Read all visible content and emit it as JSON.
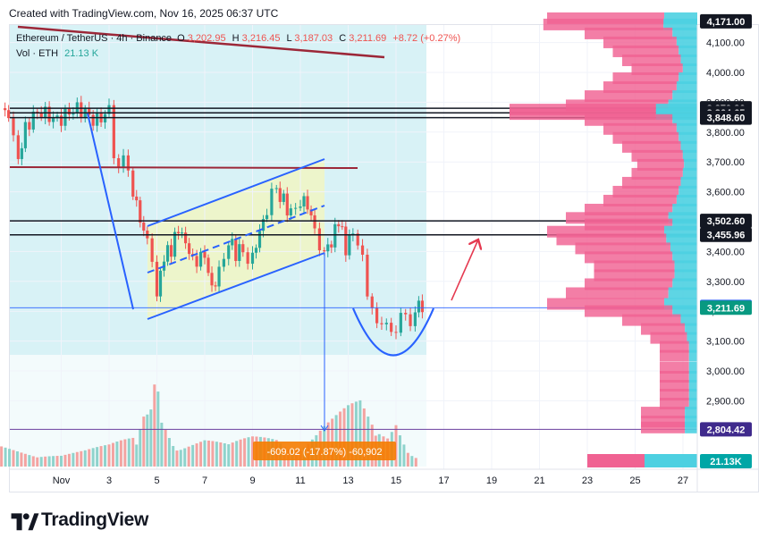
{
  "header": {
    "created_text": "Created with TradingView.com, Nov 16, 2025 06:37 UTC"
  },
  "legend": {
    "symbol": "Ethereum / TetherUS · 4h · Binance",
    "o_label": "O",
    "o_value": "3,202.95",
    "h_label": "H",
    "h_value": "3,216.45",
    "l_label": "L",
    "l_value": "3,187.03",
    "c_label": "C",
    "c_value": "3,211.69",
    "change": "+8.72 (+0.27%)",
    "vol_label": "Vol · ETH",
    "vol_value": "21.13 K"
  },
  "colors": {
    "up": "#26a69a",
    "down": "#ef5350",
    "trendline": "#2962ff",
    "resistance": "#9c2738",
    "target_arrow": "#e53950",
    "range_fill": "#d8f2f6",
    "channel_fill": "#f0f5c6",
    "vp_pink": "#f06292",
    "vp_cyan": "#4dd0e1",
    "measure_label": "#f57c00"
  },
  "footer": {
    "brand": "TradingView"
  },
  "measure": {
    "label": "-609.02 (-17.87%) -60,902"
  },
  "chart_data": {
    "type": "candlestick",
    "timeframe": "4h",
    "ylim": [
      2700,
      4200
    ],
    "y_ticks": [
      2900,
      3000,
      3100,
      3200,
      3300,
      3400,
      3500,
      3600,
      3700,
      3800,
      3900,
      4000,
      4100
    ],
    "y_tick_labels": [
      "2,900.00",
      "3,000.00",
      "3,100.00",
      "3,200.00",
      "3,300.00",
      "3,400.00",
      "3,500.00",
      "3,600.00",
      "3,700.00",
      "3,800.00",
      "3,900.00",
      "4,000.00",
      "4,100.00"
    ],
    "x_ticks": [
      {
        "label": "Nov",
        "day": 1
      },
      {
        "label": "3",
        "day": 3
      },
      {
        "label": "5",
        "day": 5
      },
      {
        "label": "7",
        "day": 7
      },
      {
        "label": "9",
        "day": 9
      },
      {
        "label": "11",
        "day": 11
      },
      {
        "label": "13",
        "day": 13
      },
      {
        "label": "15",
        "day": 15
      },
      {
        "label": "17",
        "day": 17
      },
      {
        "label": "19",
        "day": 19
      },
      {
        "label": "21",
        "day": 21
      },
      {
        "label": "23",
        "day": 23
      },
      {
        "label": "25",
        "day": 25
      },
      {
        "label": "27",
        "day": 27
      }
    ],
    "price_labels": [
      {
        "value": "4,171.00",
        "price": 4171,
        "style": "dark"
      },
      {
        "value": "3,879.86",
        "price": 3879.86,
        "style": "dark"
      },
      {
        "value": "3,864.65",
        "price": 3864.65,
        "style": "dark"
      },
      {
        "value": "3,848.60",
        "price": 3848.6,
        "style": "dark"
      },
      {
        "value": "3,502.60",
        "price": 3502.6,
        "style": "dark"
      },
      {
        "value": "3,455.96",
        "price": 3455.96,
        "style": "dark"
      },
      {
        "value": "3,214.51",
        "price": 3214.51,
        "style": "blue"
      },
      {
        "value": "3,211.69",
        "price": 3211.69,
        "style": "green"
      },
      {
        "value": "2,804.42",
        "price": 2804.42,
        "style": "navy"
      },
      {
        "value": "21.13K",
        "price": null,
        "style": "teal"
      }
    ],
    "horizontal_levels": [
      3879.86,
      3864.65,
      3848.6,
      3502.6,
      3455.96
    ],
    "close_path": [
      [
        -1.5,
        3880
      ],
      [
        -1.2,
        3840
      ],
      [
        -0.8,
        3710
      ],
      [
        -0.5,
        3820
      ],
      [
        0,
        3850
      ],
      [
        0.5,
        3860
      ],
      [
        1,
        3855
      ],
      [
        1.5,
        3860
      ],
      [
        2,
        3870
      ],
      [
        2.5,
        3850
      ],
      [
        3,
        3860
      ],
      [
        3.2,
        3730
      ],
      [
        3.6,
        3690
      ],
      [
        4,
        3620
      ],
      [
        4.3,
        3520
      ],
      [
        4.6,
        3450
      ],
      [
        4.8,
        3380
      ],
      [
        5,
        3250
      ],
      [
        5.3,
        3380
      ],
      [
        5.6,
        3400
      ],
      [
        5.9,
        3470
      ],
      [
        6.2,
        3420
      ],
      [
        6.5,
        3360
      ],
      [
        7,
        3400
      ],
      [
        7.3,
        3290
      ],
      [
        7.6,
        3340
      ],
      [
        8,
        3430
      ],
      [
        8.3,
        3380
      ],
      [
        8.6,
        3400
      ],
      [
        9,
        3380
      ],
      [
        9.3,
        3470
      ],
      [
        9.6,
        3540
      ],
      [
        10,
        3610
      ],
      [
        10.3,
        3580
      ],
      [
        10.6,
        3530
      ],
      [
        11,
        3560
      ],
      [
        11.3,
        3540
      ],
      [
        11.6,
        3460
      ],
      [
        12,
        3410
      ],
      [
        12.3,
        3440
      ],
      [
        12.6,
        3520
      ],
      [
        12.9,
        3420
      ],
      [
        13.2,
        3480
      ],
      [
        13.6,
        3380
      ],
      [
        13.8,
        3240
      ],
      [
        14.2,
        3180
      ],
      [
        14.6,
        3130
      ],
      [
        15,
        3160
      ],
      [
        15.4,
        3170
      ],
      [
        15.8,
        3200
      ],
      [
        16.1,
        3212
      ]
    ],
    "volume": [
      [
        -1.5,
        0.2
      ],
      [
        0,
        0.15
      ],
      [
        1,
        0.12
      ],
      [
        2,
        0.15
      ],
      [
        3,
        0.2
      ],
      [
        4,
        0.3
      ],
      [
        4.6,
        0.5
      ],
      [
        4.9,
        1.0
      ],
      [
        5.2,
        0.4
      ],
      [
        6,
        0.2
      ],
      [
        7,
        0.25
      ],
      [
        8,
        0.2
      ],
      [
        9,
        0.3
      ],
      [
        10,
        0.35
      ],
      [
        11,
        0.2
      ],
      [
        12,
        0.4
      ],
      [
        13,
        0.55
      ],
      [
        13.5,
        0.6
      ],
      [
        14,
        0.4
      ],
      [
        14.3,
        0.4
      ],
      [
        15,
        0.5
      ],
      [
        15.5,
        0.2
      ],
      [
        16,
        0.1
      ]
    ],
    "volume_profile": [
      [
        4171,
        0.8
      ],
      [
        4150,
        0.82
      ],
      [
        4120,
        0.6
      ],
      [
        4090,
        0.5
      ],
      [
        4060,
        0.45
      ],
      [
        4030,
        0.4
      ],
      [
        4000,
        0.35
      ],
      [
        3970,
        0.45
      ],
      [
        3940,
        0.5
      ],
      [
        3910,
        0.6
      ],
      [
        3879,
        0.7
      ],
      [
        3865,
        1.0
      ],
      [
        3850,
        1.0
      ],
      [
        3830,
        0.6
      ],
      [
        3800,
        0.5
      ],
      [
        3770,
        0.45
      ],
      [
        3740,
        0.4
      ],
      [
        3710,
        0.35
      ],
      [
        3680,
        0.32
      ],
      [
        3650,
        0.35
      ],
      [
        3620,
        0.4
      ],
      [
        3590,
        0.45
      ],
      [
        3560,
        0.5
      ],
      [
        3530,
        0.6
      ],
      [
        3502,
        0.7
      ],
      [
        3480,
        0.6
      ],
      [
        3456,
        0.8
      ],
      [
        3430,
        0.75
      ],
      [
        3400,
        0.65
      ],
      [
        3370,
        0.6
      ],
      [
        3340,
        0.55
      ],
      [
        3310,
        0.55
      ],
      [
        3280,
        0.6
      ],
      [
        3250,
        0.7
      ],
      [
        3214,
        0.8
      ],
      [
        3190,
        0.6
      ],
      [
        3160,
        0.4
      ],
      [
        3130,
        0.3
      ],
      [
        3100,
        0.25
      ],
      [
        3070,
        0.2
      ],
      [
        3040,
        0.2
      ],
      [
        3000,
        0.2
      ],
      [
        2970,
        0.2
      ],
      [
        2940,
        0.2
      ],
      [
        2910,
        0.2
      ],
      [
        2880,
        0.2
      ],
      [
        2850,
        0.3
      ],
      [
        2820,
        0.3
      ],
      [
        2800,
        0.3
      ]
    ]
  }
}
